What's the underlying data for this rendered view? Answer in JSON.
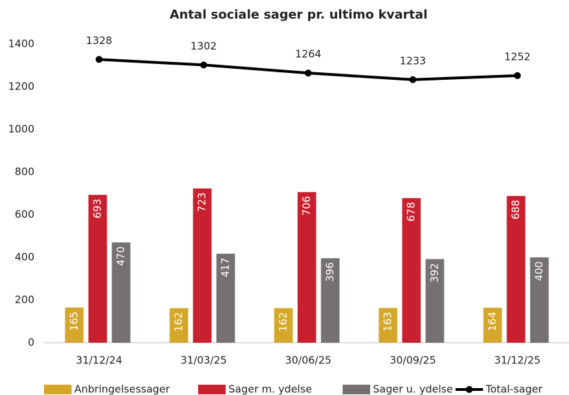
{
  "chart_data": {
    "type": "bar-line",
    "title": "Antal sociale sager pr. ultimo kvartal",
    "categories": [
      "31/12/24",
      "31/03/25",
      "30/06/25",
      "30/09/25",
      "31/12/25"
    ],
    "series": [
      {
        "name": "Anbringelsessager",
        "color": "#d4a62a",
        "type": "bar",
        "values": [
          165,
          162,
          162,
          163,
          164
        ]
      },
      {
        "name": "Sager m. ydelse",
        "color": "#c8202f",
        "type": "bar",
        "values": [
          693,
          723,
          706,
          678,
          688
        ]
      },
      {
        "name": "Sager u. ydelse",
        "color": "#767171",
        "type": "bar",
        "values": [
          470,
          417,
          396,
          392,
          400
        ]
      },
      {
        "name": "Total-sager",
        "color": "#000000",
        "type": "line",
        "values": [
          1328,
          1302,
          1264,
          1233,
          1252
        ]
      }
    ],
    "ylim": [
      0,
      1400
    ],
    "yticks": [
      0,
      200,
      400,
      600,
      800,
      1000,
      1200,
      1400
    ],
    "grid": false,
    "legend": "bottom"
  }
}
